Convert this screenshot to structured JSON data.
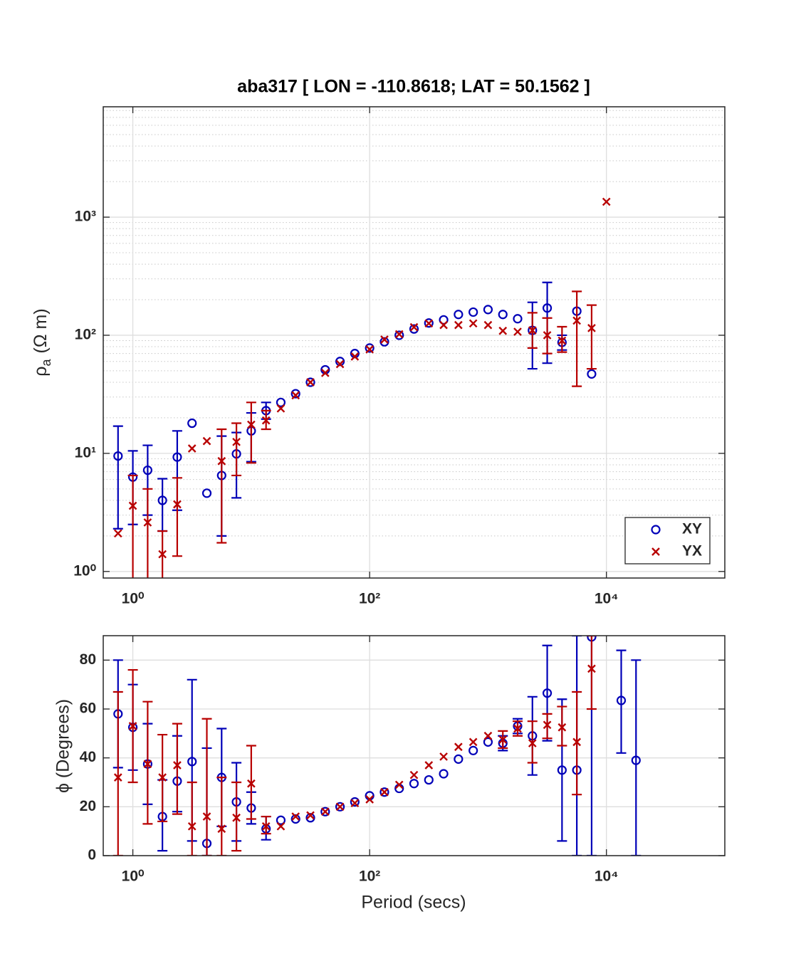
{
  "chart_data": [
    {
      "type": "scatter",
      "title": "aba317 [ LON = -110.8618; LAT = 50.1562 ]",
      "ylabel": "ρ",
      "ylabel_sub": "a",
      "ylabel_unit": "(Ω m)",
      "xlog": true,
      "ylog": true,
      "grid": true,
      "minor_grid": "y",
      "legend": "lower right",
      "xlim": [
        0.5623,
        100000
      ],
      "ylim": [
        0.88,
        8600
      ],
      "xticks": [
        {
          "value": 1,
          "label": "10⁰"
        },
        {
          "value": 100,
          "label": "10²"
        },
        {
          "value": 10000,
          "label": "10⁴"
        }
      ],
      "yticks": [
        {
          "value": 1,
          "label": "10⁰"
        },
        {
          "value": 10,
          "label": "10¹"
        },
        {
          "value": 100,
          "label": "10²"
        },
        {
          "value": 1000,
          "label": "10³"
        }
      ],
      "series": [
        {
          "name": "XY",
          "color": "#0000b8",
          "marker": "circle",
          "x": [
            0.7499,
            1,
            1.334,
            1.778,
            2.371,
            3.162,
            4.217,
            5.623,
            7.499,
            10,
            13.34,
            17.78,
            23.71,
            31.62,
            42.17,
            56.23,
            74.99,
            100,
            133.4,
            177.8,
            237.1,
            316.2,
            421.7,
            562.3,
            749.9,
            1000,
            1334,
            1778,
            2371,
            3162,
            4217,
            5623,
            7499
          ],
          "values": [
            9.5,
            6.3,
            7.2,
            4.0,
            9.3,
            18,
            4.6,
            6.5,
            9.9,
            15.5,
            23,
            27,
            32,
            40,
            51,
            60,
            70,
            78,
            88,
            100,
            113,
            127,
            135,
            150,
            157,
            165,
            150,
            138,
            110,
            170,
            87,
            160,
            47
          ],
          "lower": [
            2.3,
            2.5,
            3.0,
            2.2,
            3.3,
            null,
            null,
            2.0,
            4.2,
            8.5,
            19.5,
            null,
            null,
            null,
            null,
            null,
            null,
            null,
            null,
            null,
            null,
            null,
            null,
            null,
            null,
            null,
            null,
            null,
            52,
            58,
            75,
            null,
            null
          ],
          "upper": [
            17,
            10.5,
            11.7,
            6.1,
            15.5,
            null,
            null,
            14,
            15,
            22,
            27,
            null,
            null,
            null,
            null,
            null,
            null,
            null,
            null,
            null,
            null,
            null,
            null,
            null,
            null,
            null,
            null,
            null,
            190,
            280,
            100,
            null,
            null
          ]
        },
        {
          "name": "YX",
          "color": "#b80000",
          "marker": "cross",
          "x": [
            0.7499,
            1,
            1.334,
            1.778,
            2.371,
            3.162,
            4.217,
            5.623,
            7.499,
            10,
            13.34,
            17.78,
            23.71,
            31.62,
            42.17,
            56.23,
            74.99,
            100,
            133.4,
            177.8,
            237.1,
            316.2,
            421.7,
            562.3,
            749.9,
            1000,
            1334,
            1778,
            2371,
            3162,
            4217,
            5623,
            7499,
            10000
          ],
          "values": [
            2.1,
            3.6,
            2.6,
            1.4,
            3.7,
            11,
            12.7,
            8.6,
            12.5,
            17.5,
            19,
            24,
            31,
            40,
            48,
            57,
            66,
            76,
            92,
            102,
            117,
            126,
            122,
            122,
            126,
            122,
            109,
            107,
            110,
            100,
            90,
            133,
            115,
            1350
          ],
          "lower": [
            null,
            0.5,
            0.5,
            0.5,
            1.35,
            null,
            null,
            1.75,
            6.5,
            8.3,
            16,
            null,
            null,
            null,
            null,
            null,
            null,
            null,
            null,
            null,
            null,
            null,
            null,
            null,
            null,
            null,
            null,
            null,
            78,
            70,
            72,
            37,
            52,
            null
          ],
          "upper": [
            null,
            6.5,
            5,
            2.2,
            6.2,
            null,
            null,
            16,
            18,
            27,
            23,
            null,
            null,
            null,
            null,
            null,
            null,
            null,
            null,
            null,
            null,
            null,
            null,
            null,
            null,
            null,
            null,
            null,
            155,
            140,
            118,
            235,
            180,
            null
          ]
        }
      ]
    },
    {
      "type": "scatter",
      "xlabel": "Period (secs)",
      "ylabel": "ϕ (Degrees)",
      "xlog": true,
      "ylog": false,
      "grid": true,
      "xlim": [
        0.5623,
        100000
      ],
      "ylim": [
        0,
        90
      ],
      "xticks": [
        {
          "value": 1,
          "label": "10⁰"
        },
        {
          "value": 100,
          "label": "10²"
        },
        {
          "value": 10000,
          "label": "10⁴"
        }
      ],
      "yticks": [
        0,
        20,
        40,
        60,
        80
      ],
      "series": [
        {
          "color": "#0000b8",
          "marker": "circle",
          "x": [
            0.7499,
            1,
            1.334,
            1.778,
            2.371,
            3.162,
            4.217,
            5.623,
            7.499,
            10,
            13.34,
            17.78,
            23.71,
            31.62,
            42.17,
            56.23,
            74.99,
            100,
            133.4,
            177.8,
            237.1,
            316.2,
            421.7,
            562.3,
            749.9,
            1000,
            1334,
            1778,
            2371,
            3162,
            4217,
            5623,
            7499,
            13335,
            17783
          ],
          "values": [
            58,
            52.5,
            37.5,
            16,
            30.5,
            38.5,
            5,
            32,
            22,
            19.5,
            11,
            14.5,
            15,
            15.5,
            18,
            20,
            22,
            24.5,
            26,
            27.5,
            29.5,
            31,
            33.5,
            39.5,
            43,
            46.5,
            46,
            53,
            49,
            66.5,
            35,
            35,
            89.5,
            63.5,
            39
          ],
          "lower": [
            36,
            35,
            21,
            2,
            18,
            6,
            0,
            12,
            6,
            13,
            6.5,
            null,
            null,
            null,
            null,
            null,
            null,
            null,
            null,
            null,
            null,
            null,
            null,
            null,
            null,
            null,
            43,
            50,
            33,
            47,
            6,
            0,
            0,
            42,
            0
          ],
          "upper": [
            80,
            70,
            54,
            31,
            49,
            72,
            44,
            52,
            38,
            26,
            16,
            null,
            null,
            null,
            null,
            null,
            null,
            null,
            null,
            null,
            null,
            null,
            null,
            null,
            null,
            null,
            49,
            56,
            65,
            86,
            64,
            90,
            90,
            84,
            80
          ]
        },
        {
          "color": "#b80000",
          "marker": "cross",
          "x": [
            0.7499,
            1,
            1.334,
            1.778,
            2.371,
            3.162,
            4.217,
            5.623,
            7.499,
            10,
            13.34,
            17.78,
            23.71,
            31.62,
            42.17,
            56.23,
            74.99,
            100,
            133.4,
            177.8,
            237.1,
            316.2,
            421.7,
            562.3,
            749.9,
            1000,
            1334,
            1778,
            2371,
            3162,
            4217,
            5623,
            7499
          ],
          "values": [
            32,
            53,
            37.5,
            32,
            37,
            12,
            16,
            11,
            15.5,
            29.5,
            12,
            12,
            16,
            16.5,
            18,
            20,
            21.5,
            23,
            26,
            29,
            33,
            37,
            40.5,
            44.5,
            46.5,
            49,
            47.5,
            52,
            46,
            53.5,
            52.5,
            46.5,
            76.5
          ],
          "lower": [
            0,
            30,
            13,
            14,
            17,
            0,
            0,
            0,
            2,
            15,
            9,
            null,
            null,
            null,
            null,
            null,
            null,
            null,
            null,
            null,
            null,
            null,
            null,
            null,
            null,
            null,
            44,
            49,
            38,
            48,
            45,
            25,
            60
          ],
          "upper": [
            67,
            76,
            63,
            49.5,
            54,
            30,
            56,
            32,
            30,
            45,
            16,
            null,
            null,
            null,
            null,
            null,
            null,
            null,
            null,
            null,
            null,
            null,
            null,
            null,
            null,
            null,
            51,
            55,
            55,
            58,
            61,
            67,
            90
          ]
        }
      ]
    }
  ]
}
